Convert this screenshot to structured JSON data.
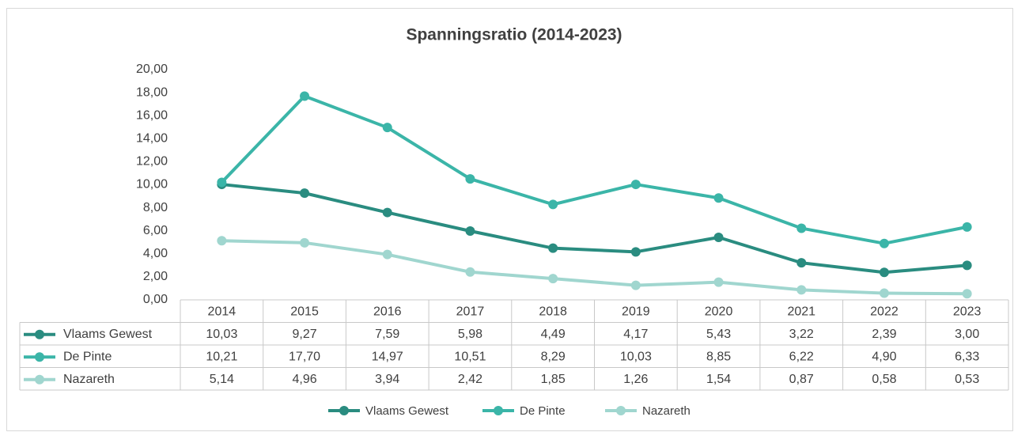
{
  "chart_data": {
    "type": "line",
    "title": "Spanningsratio (2014-2023)",
    "categories": [
      "2014",
      "2015",
      "2016",
      "2017",
      "2018",
      "2019",
      "2020",
      "2021",
      "2022",
      "2023"
    ],
    "series": [
      {
        "name": "Vlaams Gewest",
        "color": "#2a8c80",
        "values": [
          10.03,
          9.27,
          7.59,
          5.98,
          4.49,
          4.17,
          5.43,
          3.22,
          2.39,
          3.0
        ],
        "value_labels": [
          "10,03",
          "9,27",
          "7,59",
          "5,98",
          "4,49",
          "4,17",
          "5,43",
          "3,22",
          "2,39",
          "3,00"
        ]
      },
      {
        "name": "De Pinte",
        "color": "#3bb5a8",
        "values": [
          10.21,
          17.7,
          14.97,
          10.51,
          8.29,
          10.03,
          8.85,
          6.22,
          4.9,
          6.33
        ],
        "value_labels": [
          "10,21",
          "17,70",
          "14,97",
          "10,51",
          "8,29",
          "10,03",
          "8,85",
          "6,22",
          "4,90",
          "6,33"
        ]
      },
      {
        "name": "Nazareth",
        "color": "#a0d6cf",
        "values": [
          5.14,
          4.96,
          3.94,
          2.42,
          1.85,
          1.26,
          1.54,
          0.87,
          0.58,
          0.53
        ],
        "value_labels": [
          "5,14",
          "4,96",
          "3,94",
          "2,42",
          "1,85",
          "1,26",
          "1,54",
          "0,87",
          "0,58",
          "0,53"
        ]
      }
    ],
    "ylim": [
      0,
      20
    ],
    "yticks": [
      {
        "value": 0,
        "label": "0,00"
      },
      {
        "value": 2,
        "label": "2,00"
      },
      {
        "value": 4,
        "label": "4,00"
      },
      {
        "value": 6,
        "label": "6,00"
      },
      {
        "value": 8,
        "label": "8,00"
      },
      {
        "value": 10,
        "label": "10,00"
      },
      {
        "value": 12,
        "label": "12,00"
      },
      {
        "value": 14,
        "label": "14,00"
      },
      {
        "value": 16,
        "label": "16,00"
      },
      {
        "value": 18,
        "label": "18,00"
      },
      {
        "value": 20,
        "label": "20,00"
      }
    ],
    "grid": false,
    "legend": "bottom"
  }
}
